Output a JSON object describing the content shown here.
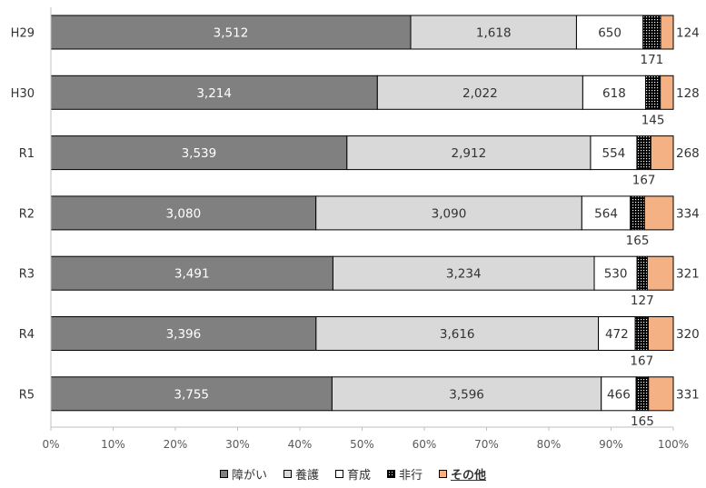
{
  "chart_data": {
    "type": "bar",
    "orientation": "horizontal",
    "stacking": "percent",
    "categories": [
      "H29",
      "H30",
      "R1",
      "R2",
      "R3",
      "R4",
      "R5"
    ],
    "series": [
      {
        "name": "障がい",
        "values": [
          3512,
          3214,
          3539,
          3080,
          3491,
          3396,
          3755
        ],
        "color": "#808080",
        "label_position": "inside"
      },
      {
        "name": "養護",
        "values": [
          1618,
          2022,
          2912,
          3090,
          3234,
          3616,
          3596
        ],
        "color": "#d9d9d9",
        "label_position": "inside"
      },
      {
        "name": "育成",
        "values": [
          650,
          618,
          554,
          564,
          530,
          472,
          466
        ],
        "color": "#ffffff",
        "label_position": "inside"
      },
      {
        "name": "非行",
        "values": [
          171,
          145,
          167,
          165,
          127,
          167,
          165
        ],
        "color": "#000000",
        "pattern": "dots",
        "label_position": "below"
      },
      {
        "name": "その他",
        "values": [
          124,
          128,
          268,
          334,
          321,
          320,
          331
        ],
        "color": "#f4b183",
        "label_position": "right"
      }
    ],
    "x_ticks": [
      "0%",
      "10%",
      "20%",
      "30%",
      "40%",
      "50%",
      "60%",
      "70%",
      "80%",
      "90%",
      "100%"
    ],
    "xlim": [
      0,
      100
    ],
    "grid": false,
    "legend": "bottom",
    "title": "",
    "xlabel": "",
    "ylabel": ""
  }
}
